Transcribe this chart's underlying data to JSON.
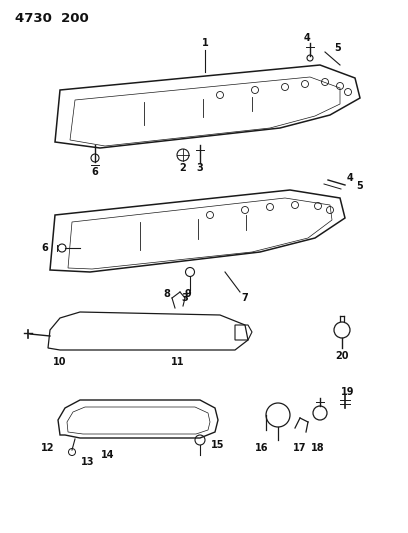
{
  "title": "4730  200",
  "background_color": "#ffffff",
  "line_color": "#1a1a1a",
  "text_color": "#111111",
  "fig_width": 4.08,
  "fig_height": 5.33,
  "dpi": 100
}
